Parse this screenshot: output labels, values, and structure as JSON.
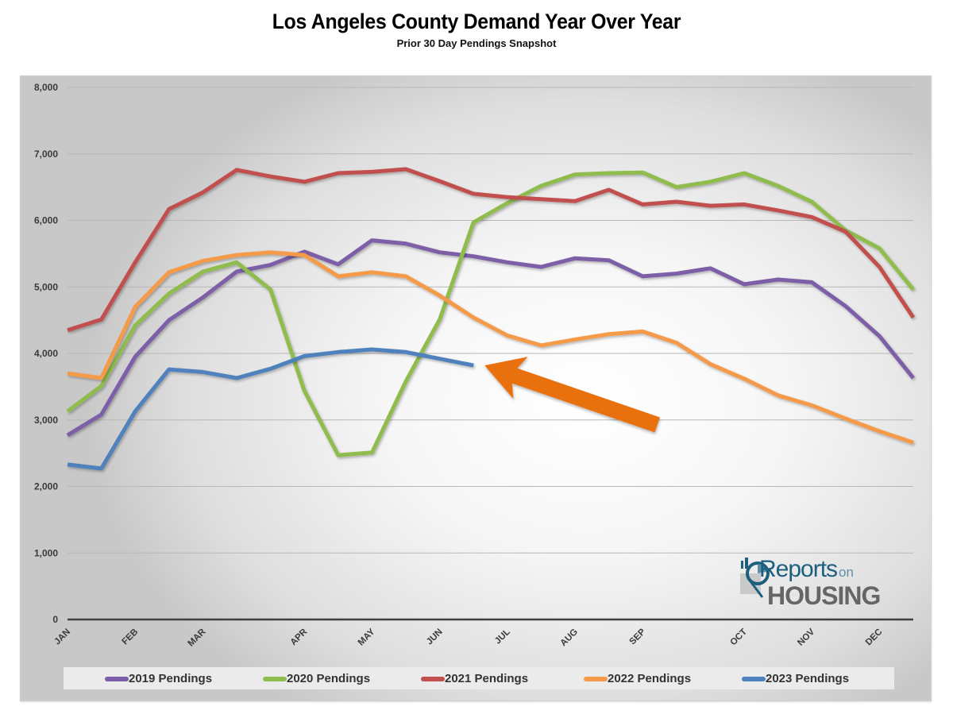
{
  "header": {
    "title": "Los Angeles County Demand Year Over Year",
    "subtitle": "Prior 30 Day Pendings Snapshot"
  },
  "logo": {
    "text_main": "Reports",
    "text_small": "on",
    "text_bottom": "HOUSING"
  },
  "colors": {
    "arrow": "#e8700e",
    "axis": "#3a3a3a",
    "grid": "#b8b8b8"
  },
  "chart_data": {
    "type": "line",
    "title": "Los Angeles County Demand Year Over Year",
    "subtitle": "Prior 30 Day Pendings Snapshot",
    "xlabel": "",
    "ylabel": "",
    "ylim": [
      0,
      8000
    ],
    "yticks": [
      0,
      1000,
      2000,
      3000,
      4000,
      5000,
      6000,
      7000,
      8000
    ],
    "ytick_labels": [
      "0",
      "1,000",
      "2,000",
      "3,000",
      "4,000",
      "5,000",
      "6,000",
      "7,000",
      "8,000"
    ],
    "grid": true,
    "legend_position": "bottom",
    "n_points": 26,
    "x_tick_labels": [
      {
        "index": 0,
        "label": "JAN"
      },
      {
        "index": 2,
        "label": "FEB"
      },
      {
        "index": 4,
        "label": "MAR"
      },
      {
        "index": 7,
        "label": "APR"
      },
      {
        "index": 9,
        "label": "MAY"
      },
      {
        "index": 11,
        "label": "JUN"
      },
      {
        "index": 13,
        "label": "JUL"
      },
      {
        "index": 15,
        "label": "AUG"
      },
      {
        "index": 17,
        "label": "SEP"
      },
      {
        "index": 20,
        "label": "OCT"
      },
      {
        "index": 22,
        "label": "NOV"
      },
      {
        "index": 24,
        "label": "DEC"
      }
    ],
    "series": [
      {
        "name": "2019 Pendings",
        "color": "#7b5ea7",
        "values": [
          2770,
          3080,
          3950,
          4500,
          4840,
          5230,
          5330,
          5530,
          5340,
          5700,
          5650,
          5520,
          5460,
          5370,
          5300,
          5430,
          5400,
          5160,
          5200,
          5280,
          5040,
          5110,
          5070,
          4710,
          4260,
          3630
        ]
      },
      {
        "name": "2020 Pendings",
        "color": "#8fbc4e",
        "values": [
          3130,
          3510,
          4420,
          4900,
          5230,
          5370,
          4960,
          3440,
          2470,
          2510,
          3580,
          4510,
          5970,
          6260,
          6520,
          6690,
          6710,
          6720,
          6500,
          6580,
          6710,
          6520,
          6280,
          5850,
          5580,
          4960
        ]
      },
      {
        "name": "2021 Pendings",
        "color": "#c0504d",
        "values": [
          4350,
          4510,
          5370,
          6170,
          6420,
          6760,
          6660,
          6580,
          6710,
          6730,
          6770,
          6590,
          6400,
          6350,
          6320,
          6290,
          6460,
          6240,
          6280,
          6220,
          6240,
          6150,
          6050,
          5830,
          5300,
          4540
        ]
      },
      {
        "name": "2022 Pendings",
        "color": "#f59a4a",
        "values": [
          3700,
          3630,
          4700,
          5220,
          5390,
          5480,
          5520,
          5480,
          5160,
          5220,
          5160,
          4870,
          4540,
          4270,
          4120,
          4210,
          4290,
          4330,
          4160,
          3840,
          3620,
          3370,
          3220,
          3020,
          2830,
          2660
        ]
      },
      {
        "name": "2023 Pendings",
        "color": "#4f81bd",
        "values": [
          2330,
          2270,
          3130,
          3760,
          3720,
          3630,
          3770,
          3960,
          4020,
          4060,
          4020,
          3920,
          3820
        ]
      }
    ],
    "annotations": [
      {
        "type": "arrow",
        "description": "Large orange arrow pointing to the latest 2023 Pendings value",
        "points_to_index": 12,
        "series": "2023 Pendings"
      }
    ]
  }
}
